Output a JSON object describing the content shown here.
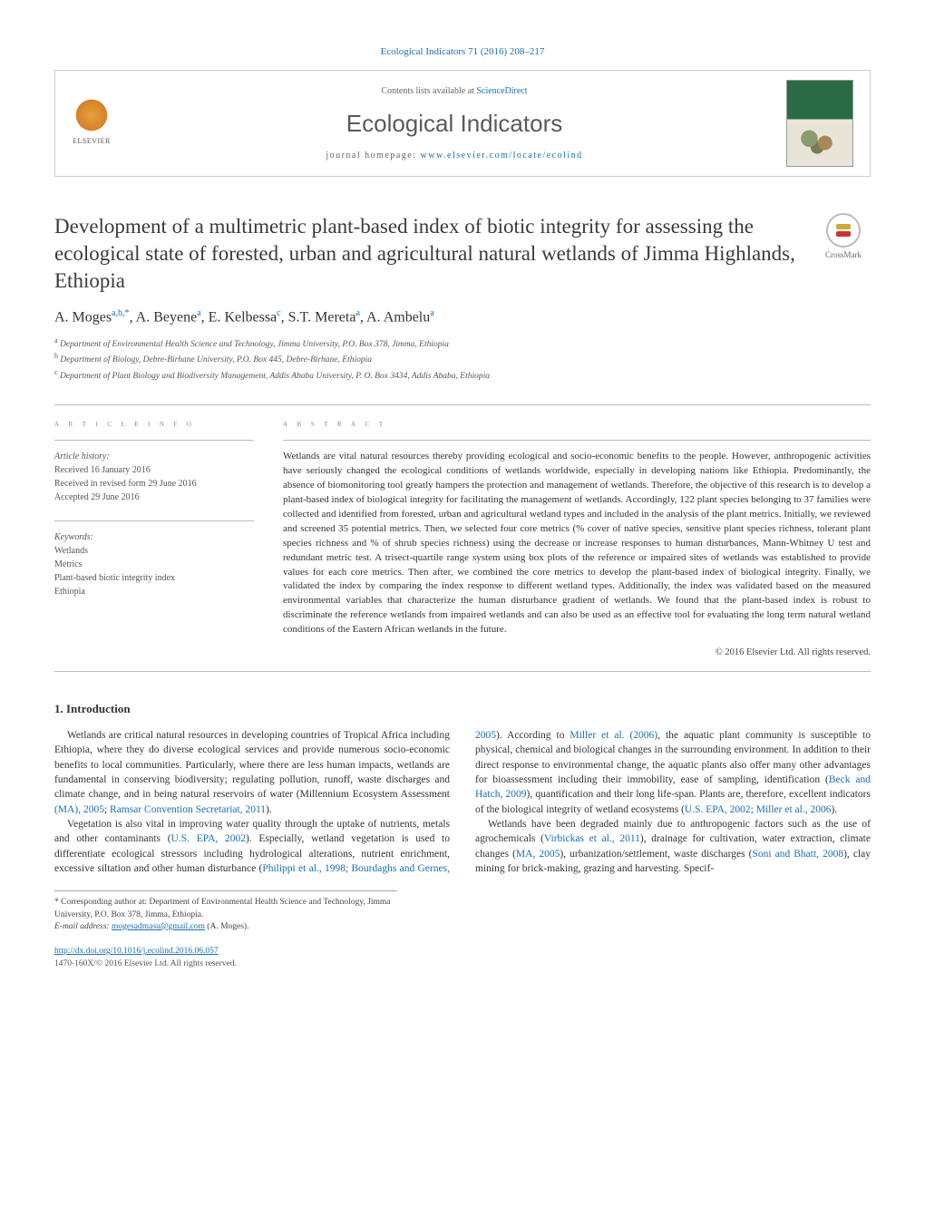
{
  "journal": {
    "citation_line": "Ecological Indicators 71 (2016) 208–217",
    "contents_prefix": "Contents lists available at ",
    "contents_link": "ScienceDirect",
    "name": "Ecological Indicators",
    "homepage_prefix": "journal homepage: ",
    "homepage_url": "www.elsevier.com/locate/ecolind",
    "publisher": "ELSEVIER"
  },
  "crossmark_label": "CrossMark",
  "article": {
    "title": "Development of a multimetric plant-based index of biotic integrity for assessing the ecological state of forested, urban and agricultural natural wetlands of Jimma Highlands, Ethiopia",
    "authors_html": "A. Moges|a,b,*|, A. Beyene|a|, E. Kelbessa|c|, S.T. Mereta|a|, A. Ambelu|a|",
    "authors": [
      {
        "name": "A. Moges",
        "sup": "a,b,*"
      },
      {
        "name": "A. Beyene",
        "sup": "a"
      },
      {
        "name": "E. Kelbessa",
        "sup": "c"
      },
      {
        "name": "S.T. Mereta",
        "sup": "a"
      },
      {
        "name": "A. Ambelu",
        "sup": "a"
      }
    ],
    "affiliations": [
      {
        "sup": "a",
        "text": "Department of Environmental Health Science and Technology, Jimma University, P.O. Box 378, Jimma, Ethiopia"
      },
      {
        "sup": "b",
        "text": "Department of Biology, Debre-Birhane University, P.O. Box 445, Debre-Birhane, Ethiopia"
      },
      {
        "sup": "c",
        "text": "Department of Plant Biology and Biodiversity Management, Addis Ababa University, P. O. Box 3434, Addis Ababa, Ethiopia"
      }
    ]
  },
  "info": {
    "article_info_label": "a r t i c l e    i n f o",
    "abstract_label": "a b s t r a c t",
    "history_label": "Article history:",
    "history": [
      "Received 16 January 2016",
      "Received in revised form 29 June 2016",
      "Accepted 29 June 2016"
    ],
    "keywords_label": "Keywords:",
    "keywords": [
      "Wetlands",
      "Metrics",
      "Plant-based biotic integrity index",
      "Ethiopia"
    ]
  },
  "abstract": "Wetlands are vital natural resources thereby providing ecological and socio-economic benefits to the people. However, anthropogenic activities have seriously changed the ecological conditions of wetlands worldwide, especially in developing nations like Ethiopia. Predominantly, the absence of biomonitoring tool greatly hampers the protection and management of wetlands. Therefore, the objective of this research is to develop a plant-based index of biological integrity for facilitating the management of wetlands. Accordingly, 122 plant species belonging to 37 families were collected and identified from forested, urban and agricultural wetland types and included in the analysis of the plant metrics. Initially, we reviewed and screened 35 potential metrics. Then, we selected four core metrics (% cover of native species, sensitive plant species richness, tolerant plant species richness and % of shrub species richness) using the decrease or increase responses to human disturbances, Mann-Whitney U test and redundant metric test. A trisect-quartile range system using box plots of the reference or impaired sites of wetlands was established to provide values for each core metrics. Then after, we combined the core metrics to develop the plant-based index of biological integrity. Finally, we validated the index by comparing the index response to different wetland types. Additionally, the index was validated based on the measured environmental variables that characterize the human disturbance gradient of wetlands. We found that the plant-based index is robust to discriminate the reference wetlands from impaired wetlands and can also be used as an effective tool for evaluating the long term natural wetland conditions of the Eastern African wetlands in the future.",
  "copyright": "© 2016 Elsevier Ltd. All rights reserved.",
  "intro": {
    "heading": "1.  Introduction",
    "paragraphs": [
      "Wetlands are critical natural resources in developing countries of Tropical Africa including Ethiopia, where they do diverse ecological services and provide numerous socio-economic benefits to local communities. Particularly, where there are less human impacts, wetlands are fundamental in conserving biodiversity; regulating pollution, runoff, waste discharges and climate change, and in being natural reservoirs of water (Millennium Ecosystem Assessment |(MA), 2005|; |Ramsar Convention Secretariat, 2011|).",
      "Vegetation is also vital in improving water quality through the uptake of nutrients, metals and other contaminants (|U.S. EPA, 2002|). Especially, wetland vegetation is used to differentiate ecological stressors including hydrological alterations, nutrient enrichment, excessive siltation and other human disturbance (|Philippi et al., 1998; Bourdaghs and Gernes, 2005|). According to |Miller et al. (2006)|, the aquatic plant community is susceptible to physical, chemical and biological changes in the surrounding environment. In addition to their direct response to environmental change, the aquatic plants also offer many other advantages for bioassessment including their immobility, ease of sampling, identification (|Beck and Hatch, 2009|), quantification and their long life-span. Plants are, therefore, excellent indicators of the biological integrity of wetland ecosystems (|U.S. EPA, 2002; Miller et al., 2006|).",
      "Wetlands have been degraded mainly due to anthropogenic factors such as the use of agrochemicals (|Virbickas et al., 2011|), drainage for cultivation, water extraction, climate changes (|MA, 2005|), urbanization/settlement, waste discharges (|Soni and Bhatt, 2008|), clay mining for brick-making, grazing and harvesting. Specif-"
    ]
  },
  "footnotes": {
    "corr": "* Corresponding author at: Department of Environmental Health Science and Technology, Jimma University, P.O. Box 378, Jimma, Ethiopia.",
    "email_label": "E-mail address: ",
    "email": "mogesadmasu@gmail.com",
    "email_who": " (A. Moges)."
  },
  "footer": {
    "doi": "http://dx.doi.org/10.1016/j.ecolind.2016.06.057",
    "issn_line": "1470-160X/© 2016 Elsevier Ltd. All rights reserved."
  },
  "colors": {
    "link": "#1a6db5",
    "text": "#333333",
    "muted": "#666666",
    "rule": "#bbbbbb"
  }
}
